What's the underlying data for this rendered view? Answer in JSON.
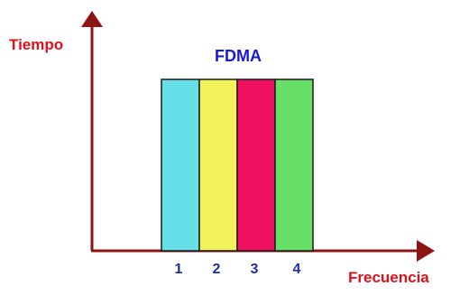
{
  "diagram": {
    "title": "FDMA",
    "y_axis_label": "Tiempo",
    "x_axis_label": "Frecuencia",
    "axis_color": "#8b1414",
    "label_color": "#e0101a",
    "title_color": "#1818d8",
    "number_color": "#1c2fa8",
    "channels": [
      {
        "label": "1",
        "color": "#66e0e8"
      },
      {
        "label": "2",
        "color": "#f2f25a"
      },
      {
        "label": "3",
        "color": "#f01060"
      },
      {
        "label": "4",
        "color": "#66e066"
      }
    ]
  }
}
